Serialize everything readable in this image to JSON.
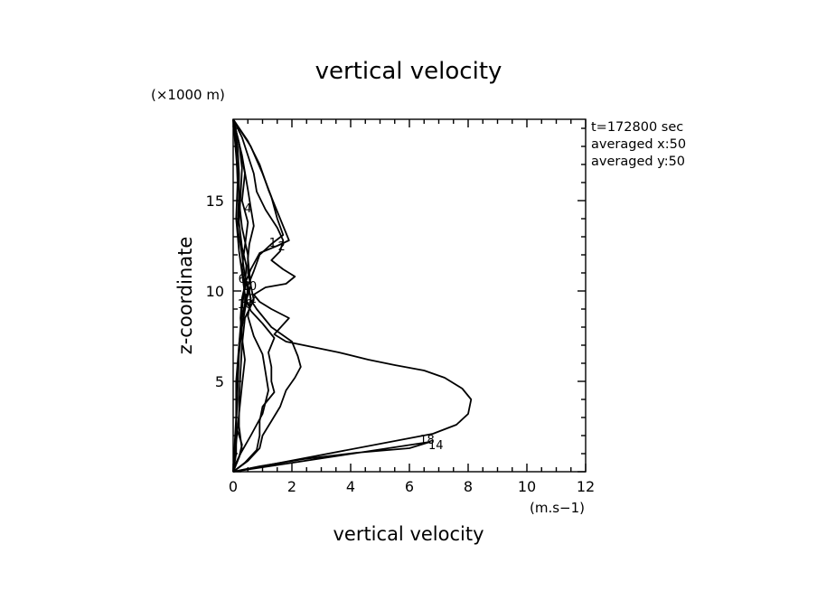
{
  "chart_data": {
    "type": "line",
    "title": "vertical velocity",
    "xlabel": "vertical velocity",
    "ylabel": "z-coordinate",
    "x_unit": "(m.s−1)",
    "y_unit": "(×1000 m)",
    "xlim": [
      0,
      12
    ],
    "ylim": [
      0,
      19.5
    ],
    "x_ticks": [
      0,
      2,
      4,
      6,
      8,
      10,
      12
    ],
    "y_ticks": [
      5,
      10,
      15
    ],
    "grid": false,
    "info_lines": [
      "t=172800 sec",
      "averaged  x:50",
      "averaged  y:50"
    ],
    "series": [
      {
        "label": "18",
        "label_at": [
          6.6,
          1.8
        ],
        "points": [
          [
            0,
            0
          ],
          [
            6.8,
            2.1
          ],
          [
            7.6,
            2.6
          ],
          [
            8.0,
            3.2
          ],
          [
            8.1,
            4.0
          ],
          [
            7.8,
            4.6
          ],
          [
            7.2,
            5.2
          ],
          [
            6.5,
            5.6
          ],
          [
            5.5,
            5.9
          ],
          [
            4.6,
            6.2
          ],
          [
            3.6,
            6.6
          ],
          [
            2.7,
            6.9
          ],
          [
            1.8,
            7.2
          ],
          [
            1.4,
            7.6
          ],
          [
            1.9,
            8.5
          ],
          [
            1.3,
            9.0
          ],
          [
            0.9,
            9.4
          ],
          [
            0.7,
            9.8
          ],
          [
            1.1,
            10.2
          ],
          [
            1.8,
            10.4
          ],
          [
            2.1,
            10.8
          ],
          [
            1.7,
            11.2
          ],
          [
            1.3,
            11.7
          ],
          [
            1.6,
            12.2
          ],
          [
            1.7,
            12.8
          ],
          [
            1.5,
            13.5
          ],
          [
            1.1,
            14.5
          ],
          [
            0.8,
            15.5
          ],
          [
            0.7,
            16.5
          ],
          [
            0.5,
            17.5
          ],
          [
            0.3,
            18.5
          ],
          [
            0,
            19.5
          ]
        ]
      },
      {
        "label": "14",
        "label_at": [
          6.9,
          1.5
        ],
        "points": [
          [
            0,
            0
          ],
          [
            6.7,
            1.65
          ],
          [
            6.0,
            1.3
          ],
          [
            4.2,
            1.05
          ],
          [
            2.4,
            0.7
          ],
          [
            0.9,
            0.3
          ],
          [
            0,
            0
          ]
        ]
      },
      {
        "label": "1",
        "label_at": [
          1.35,
          12.7
        ],
        "points": [
          [
            0,
            19.5
          ],
          [
            0.5,
            18.3
          ],
          [
            0.9,
            17.0
          ],
          [
            1.2,
            15.6
          ],
          [
            1.6,
            14.0
          ],
          [
            1.9,
            12.8
          ],
          [
            1.5,
            12.5
          ],
          [
            0.9,
            12.1
          ],
          [
            0.6,
            11.2
          ],
          [
            0.4,
            10.4
          ],
          [
            0.3,
            9.0
          ],
          [
            0.2,
            7.0
          ],
          [
            0.1,
            5.0
          ],
          [
            0.1,
            3.0
          ],
          [
            0.1,
            1.0
          ],
          [
            0,
            0
          ]
        ]
      },
      {
        "label": "2",
        "label_at": [
          1.65,
          12.5
        ],
        "points": [
          [
            0,
            19.5
          ],
          [
            0.6,
            18.0
          ],
          [
            1.0,
            16.5
          ],
          [
            1.3,
            15.2
          ],
          [
            1.5,
            14.0
          ],
          [
            1.7,
            13.1
          ],
          [
            1.3,
            12.6
          ],
          [
            0.9,
            12.0
          ],
          [
            0.7,
            11.1
          ],
          [
            0.5,
            10.3
          ],
          [
            0.45,
            9.4
          ],
          [
            0.3,
            8.0
          ],
          [
            0.2,
            6.5
          ],
          [
            0.15,
            4.5
          ],
          [
            0.1,
            2.5
          ],
          [
            0.3,
            1.5
          ],
          [
            0.2,
            0.8
          ],
          [
            0,
            0
          ]
        ]
      },
      {
        "label": "4",
        "label_at": [
          0.5,
          14.6
        ],
        "points": [
          [
            0,
            19.5
          ],
          [
            0.3,
            17.5
          ],
          [
            0.5,
            15.6
          ],
          [
            0.6,
            14.6
          ],
          [
            0.7,
            13.6
          ],
          [
            0.55,
            12.6
          ],
          [
            0.5,
            11.8
          ],
          [
            0.55,
            11.0
          ],
          [
            0.6,
            10.3
          ],
          [
            0.7,
            9.5
          ],
          [
            0.4,
            8.5
          ],
          [
            0.3,
            7.0
          ],
          [
            0.25,
            5.5
          ],
          [
            0.2,
            4.0
          ],
          [
            0.2,
            2.5
          ],
          [
            0.3,
            1.2
          ],
          [
            0.1,
            0.5
          ],
          [
            0,
            0
          ]
        ]
      },
      {
        "label": "6",
        "label_at": [
          0.3,
          10.7
        ],
        "points": [
          [
            0,
            19.5
          ],
          [
            0.25,
            17.8
          ],
          [
            0.4,
            16.5
          ],
          [
            0.3,
            15.0
          ],
          [
            0.5,
            13.8
          ],
          [
            0.4,
            12.5
          ],
          [
            0.3,
            11.3
          ],
          [
            0.35,
            10.7
          ],
          [
            0.5,
            10.2
          ],
          [
            0.6,
            9.6
          ],
          [
            0.5,
            8.6
          ],
          [
            0.7,
            7.5
          ],
          [
            1.0,
            6.5
          ],
          [
            1.1,
            5.5
          ],
          [
            1.2,
            4.5
          ],
          [
            1.0,
            3.2
          ],
          [
            0.6,
            2.0
          ],
          [
            0.25,
            1.0
          ],
          [
            0,
            0
          ]
        ]
      },
      {
        "label": "8",
        "label_at": [
          0.45,
          10.3
        ],
        "points": [
          [
            0,
            19.5
          ],
          [
            0.2,
            18.2
          ],
          [
            0.3,
            16.8
          ],
          [
            0.25,
            15.2
          ],
          [
            0.2,
            13.8
          ],
          [
            0.3,
            12.4
          ],
          [
            0.45,
            11.4
          ],
          [
            0.4,
            10.3
          ],
          [
            0.3,
            9.6
          ],
          [
            0.25,
            8.5
          ],
          [
            0.3,
            7.4
          ],
          [
            0.4,
            6.2
          ],
          [
            0.3,
            4.8
          ],
          [
            0.2,
            3.2
          ],
          [
            0.1,
            1.6
          ],
          [
            0,
            0
          ]
        ]
      },
      {
        "label": "10",
        "label_at": [
          0.55,
          10.3
        ],
        "points": [
          [
            0,
            19.5
          ],
          [
            0.15,
            18.0
          ],
          [
            0.2,
            16.5
          ],
          [
            0.2,
            15.0
          ],
          [
            0.3,
            13.5
          ],
          [
            0.5,
            12.0
          ],
          [
            0.5,
            11.0
          ],
          [
            0.6,
            10.3
          ],
          [
            0.45,
            9.5
          ],
          [
            0.6,
            8.9
          ],
          [
            1.0,
            8.2
          ],
          [
            1.4,
            7.4
          ],
          [
            1.2,
            6.6
          ],
          [
            1.3,
            5.8
          ],
          [
            1.3,
            5.0
          ],
          [
            1.4,
            4.4
          ],
          [
            1.0,
            3.6
          ],
          [
            0.9,
            2.8
          ],
          [
            0.9,
            2.0
          ],
          [
            0.8,
            1.2
          ],
          [
            0.4,
            0.5
          ],
          [
            0,
            0
          ]
        ]
      },
      {
        "label": "12",
        "label_at": [
          0.55,
          9.6
        ],
        "points": [
          [
            0,
            19.5
          ],
          [
            0.1,
            17.5
          ],
          [
            0.2,
            15.5
          ],
          [
            0.15,
            13.5
          ],
          [
            0.3,
            12.0
          ],
          [
            0.4,
            10.8
          ],
          [
            0.55,
            10.0
          ],
          [
            0.6,
            9.5
          ],
          [
            0.8,
            9.0
          ],
          [
            1.3,
            8.0
          ],
          [
            2.0,
            7.2
          ],
          [
            2.2,
            6.4
          ],
          [
            2.3,
            5.8
          ],
          [
            2.1,
            5.2
          ],
          [
            1.8,
            4.5
          ],
          [
            1.6,
            3.6
          ],
          [
            1.3,
            2.8
          ],
          [
            1.0,
            2.0
          ],
          [
            0.9,
            1.3
          ],
          [
            0.5,
            0.6
          ],
          [
            0,
            0
          ]
        ]
      },
      {
        "label": "16",
        "label_at": [
          0.4,
          9.3
        ],
        "points": [
          [
            0,
            19.5
          ],
          [
            0.1,
            18.0
          ],
          [
            0.15,
            16.0
          ],
          [
            0.1,
            14.0
          ],
          [
            0.2,
            12.2
          ],
          [
            0.3,
            11.0
          ],
          [
            0.4,
            9.8
          ],
          [
            0.4,
            9.3
          ],
          [
            0.3,
            8.5
          ],
          [
            0.2,
            7.0
          ],
          [
            0.15,
            5.0
          ],
          [
            0.1,
            3.0
          ],
          [
            0.05,
            1.5
          ],
          [
            0,
            0
          ]
        ]
      }
    ]
  }
}
